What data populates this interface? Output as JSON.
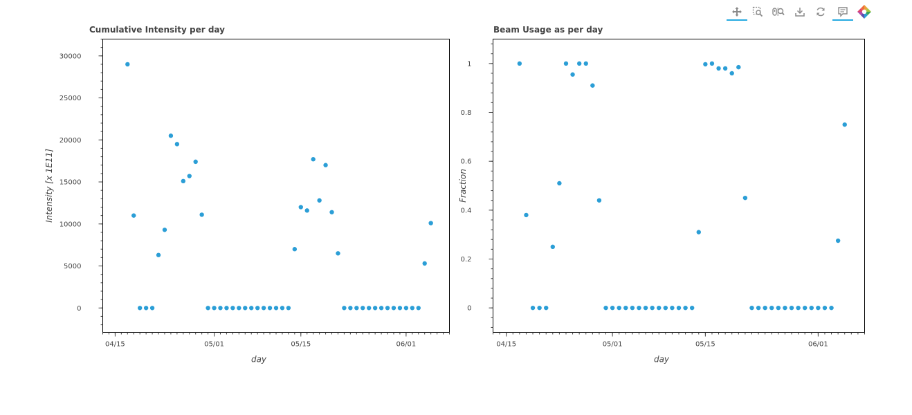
{
  "toolbar": {
    "tools": [
      {
        "name": "pan-tool",
        "active": true
      },
      {
        "name": "box-zoom-tool",
        "active": false
      },
      {
        "name": "wheel-zoom-tool",
        "active": false
      },
      {
        "name": "save-tool",
        "active": false
      },
      {
        "name": "reset-tool",
        "active": false
      },
      {
        "name": "hover-tool",
        "active": true
      },
      {
        "name": "bokeh-logo",
        "active": false
      }
    ]
  },
  "colors": {
    "marker": "#2b9ed6",
    "tick": "#444444",
    "active_tool": "#26aae1"
  },
  "chart_data": [
    {
      "type": "scatter",
      "title": "Cumulative Intensity per day",
      "xlabel": "day",
      "ylabel": "Intensity [x 1E11]",
      "x_ticks": [
        "04/15",
        "05/01",
        "05/15",
        "06/01"
      ],
      "x_tick_dates": [
        "2023-04-15",
        "2023-05-01",
        "2023-05-15",
        "2023-06-01"
      ],
      "y_ticks": [
        "0",
        "5000",
        "10000",
        "15000",
        "20000",
        "25000",
        "30000"
      ],
      "y_tick_values": [
        0,
        5000,
        10000,
        15000,
        20000,
        25000,
        30000
      ],
      "xlim": [
        "2023-04-13",
        "2023-06-08"
      ],
      "ylim": [
        -2900,
        32000
      ],
      "grid": false,
      "x": [
        "2023-04-17",
        "2023-04-18",
        "2023-04-19",
        "2023-04-20",
        "2023-04-21",
        "2023-04-22",
        "2023-04-23",
        "2023-04-24",
        "2023-04-25",
        "2023-04-26",
        "2023-04-27",
        "2023-04-28",
        "2023-04-29",
        "2023-04-30",
        "2023-05-01",
        "2023-05-02",
        "2023-05-03",
        "2023-05-04",
        "2023-05-05",
        "2023-05-06",
        "2023-05-07",
        "2023-05-08",
        "2023-05-09",
        "2023-05-10",
        "2023-05-11",
        "2023-05-12",
        "2023-05-13",
        "2023-05-14",
        "2023-05-15",
        "2023-05-16",
        "2023-05-17",
        "2023-05-18",
        "2023-05-19",
        "2023-05-20",
        "2023-05-21",
        "2023-05-22",
        "2023-05-23",
        "2023-05-24",
        "2023-05-25",
        "2023-05-26",
        "2023-05-27",
        "2023-05-28",
        "2023-05-29",
        "2023-05-30",
        "2023-05-31",
        "2023-06-01",
        "2023-06-02",
        "2023-06-03",
        "2023-06-04",
        "2023-06-05"
      ],
      "y": [
        29000,
        11000,
        0,
        0,
        0,
        6300,
        9300,
        20500,
        19500,
        15100,
        15700,
        17400,
        11100,
        0,
        0,
        0,
        0,
        0,
        0,
        0,
        0,
        0,
        0,
        0,
        0,
        0,
        0,
        7000,
        12000,
        11600,
        17700,
        12800,
        17000,
        11400,
        6500,
        0,
        0,
        0,
        0,
        0,
        0,
        0,
        0,
        0,
        0,
        0,
        0,
        0,
        5300,
        10100
      ]
    },
    {
      "type": "scatter",
      "title": "Beam Usage as per day",
      "xlabel": "day",
      "ylabel": "Fraction",
      "x_ticks": [
        "04/15",
        "05/01",
        "05/15",
        "06/01"
      ],
      "x_tick_dates": [
        "2023-04-15",
        "2023-05-01",
        "2023-05-15",
        "2023-06-01"
      ],
      "y_ticks": [
        "0",
        "0.2",
        "0.4",
        "0.6",
        "0.8",
        "1"
      ],
      "y_tick_values": [
        0,
        0.2,
        0.4,
        0.6,
        0.8,
        1
      ],
      "xlim": [
        "2023-04-13",
        "2023-06-08"
      ],
      "ylim": [
        -0.1,
        1.1
      ],
      "grid": false,
      "x": [
        "2023-04-17",
        "2023-04-18",
        "2023-04-19",
        "2023-04-20",
        "2023-04-21",
        "2023-04-22",
        "2023-04-23",
        "2023-04-24",
        "2023-04-25",
        "2023-04-26",
        "2023-04-27",
        "2023-04-28",
        "2023-04-29",
        "2023-04-30",
        "2023-05-01",
        "2023-05-02",
        "2023-05-03",
        "2023-05-04",
        "2023-05-05",
        "2023-05-06",
        "2023-05-07",
        "2023-05-08",
        "2023-05-09",
        "2023-05-10",
        "2023-05-11",
        "2023-05-12",
        "2023-05-13",
        "2023-05-14",
        "2023-05-15",
        "2023-05-16",
        "2023-05-17",
        "2023-05-18",
        "2023-05-19",
        "2023-05-20",
        "2023-05-21",
        "2023-05-22",
        "2023-05-23",
        "2023-05-24",
        "2023-05-25",
        "2023-05-26",
        "2023-05-27",
        "2023-05-28",
        "2023-05-29",
        "2023-05-30",
        "2023-05-31",
        "2023-06-01",
        "2023-06-02",
        "2023-06-03",
        "2023-06-04",
        "2023-06-05"
      ],
      "y": [
        1.0,
        0.38,
        0,
        0,
        0,
        0.25,
        0.51,
        1.0,
        0.955,
        1.0,
        1.0,
        0.91,
        0.44,
        0,
        0,
        0,
        0,
        0,
        0,
        0,
        0,
        0,
        0,
        0,
        0,
        0,
        0,
        0.31,
        0.997,
        1.0,
        0.98,
        0.98,
        0.96,
        0.985,
        0.45,
        0,
        0,
        0,
        0,
        0,
        0,
        0,
        0,
        0,
        0,
        0,
        0,
        0,
        0.275,
        0.75
      ]
    }
  ]
}
